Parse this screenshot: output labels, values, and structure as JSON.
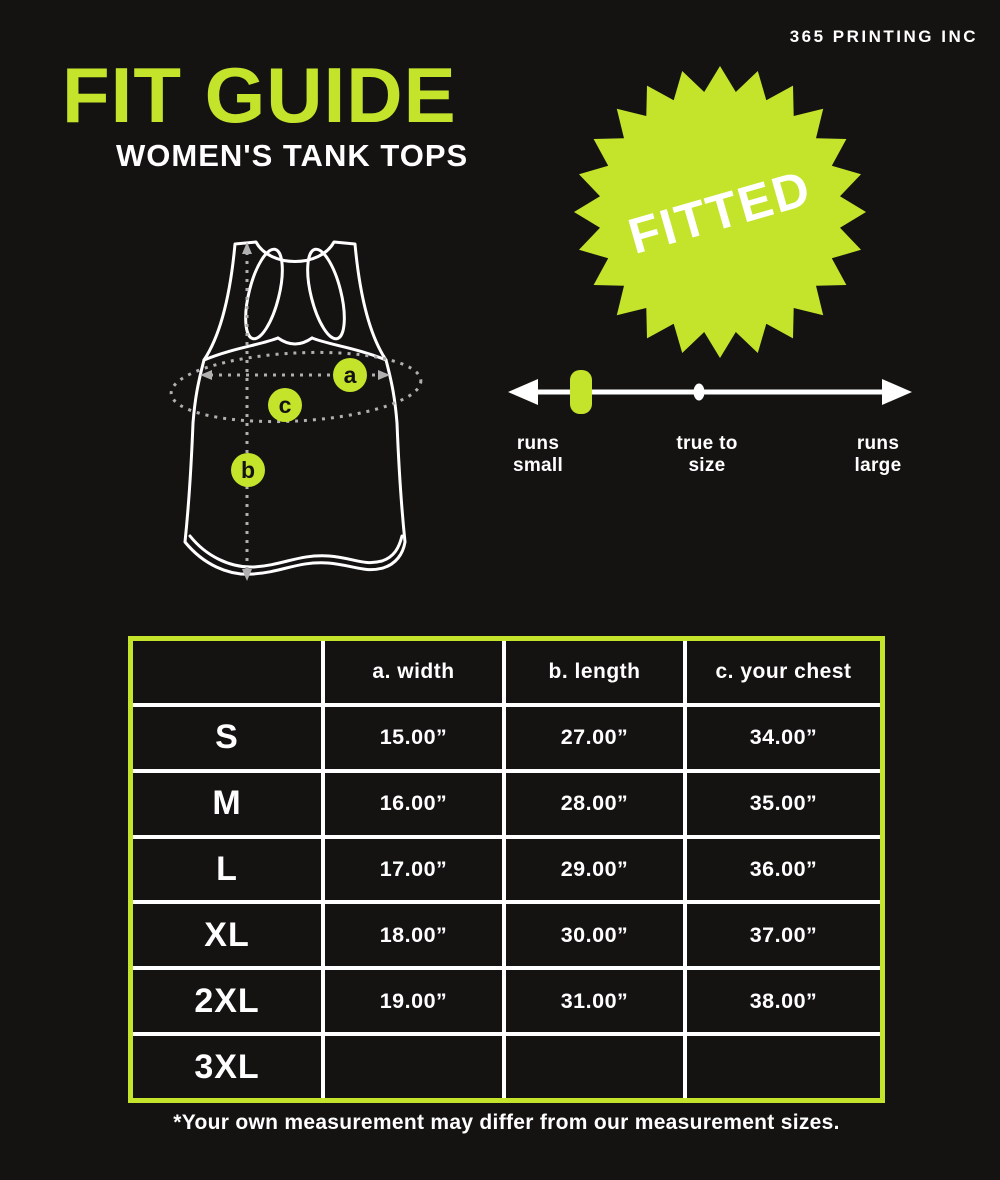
{
  "brand": "365 PRINTING INC",
  "header": {
    "title": "FIT GUIDE",
    "subtitle": "WOMEN'S TANK TOPS"
  },
  "badge": {
    "label": "FITTED"
  },
  "fit_scale": {
    "labels": [
      {
        "line1": "runs",
        "line2": "small"
      },
      {
        "line1": "true to",
        "line2": "size"
      },
      {
        "line1": "runs",
        "line2": "large"
      }
    ],
    "marker_position": "runs small"
  },
  "diagram": {
    "markers": [
      {
        "letter": "a",
        "meaning": "width"
      },
      {
        "letter": "b",
        "meaning": "length"
      },
      {
        "letter": "c",
        "meaning": "your chest"
      }
    ]
  },
  "size_table": {
    "columns": [
      "a. width",
      "b. length",
      "c. your chest"
    ],
    "rows": [
      {
        "size": "S",
        "width": "15.00”",
        "length": "27.00”",
        "chest": "34.00”"
      },
      {
        "size": "M",
        "width": "16.00”",
        "length": "28.00”",
        "chest": "35.00”"
      },
      {
        "size": "L",
        "width": "17.00”",
        "length": "29.00”",
        "chest": "36.00”"
      },
      {
        "size": "XL",
        "width": "18.00”",
        "length": "30.00”",
        "chest": "37.00”"
      },
      {
        "size": "2XL",
        "width": "19.00”",
        "length": "31.00”",
        "chest": "38.00”"
      },
      {
        "size": "3XL",
        "width": "",
        "length": "",
        "chest": ""
      }
    ]
  },
  "footnote": "*Your own measurement may differ from our measurement sizes.",
  "colors": {
    "accent": "#c3e42b",
    "background": "#151312",
    "text": "#ffffff"
  }
}
